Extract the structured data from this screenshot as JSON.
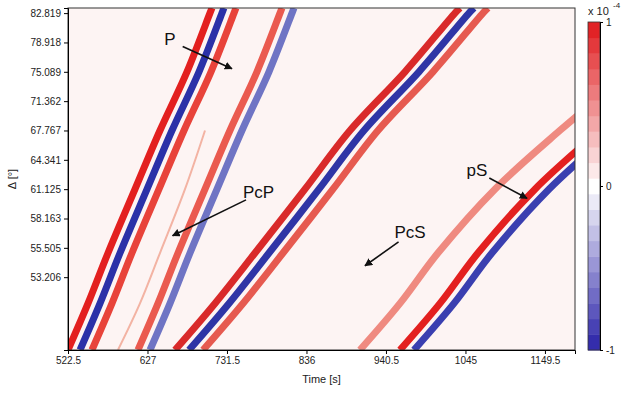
{
  "chart_data": {
    "type": "line",
    "xlabel": "Time [s]",
    "ylabel": "Δ [°]",
    "xlim": [
      522.5,
      1189
    ],
    "xticks": [
      522.5,
      627,
      731.5,
      836,
      940.5,
      1045,
      1149.5
    ],
    "ylim": [
      47.5,
      83.5
    ],
    "yticks": [
      53.206,
      55.505,
      58.163,
      61.125,
      64.341,
      67.767,
      71.362,
      75.089,
      78.918,
      82.819
    ],
    "series": [
      {
        "color": "#e3201f",
        "x": [
          522.5,
          548.8,
          575.1,
          610.6,
          643.4,
          678.9,
          709.1,
          711.8
        ],
        "values": [
          47.5,
          51.15,
          55.1,
          61.125,
          67.767,
          75.089,
          82.819,
          83.5
        ]
      },
      {
        "color": "#2b31a8",
        "x": [
          538.3,
          564.6,
          590.9,
          626.4,
          659.2,
          694.7,
          724.9,
          727.5
        ],
        "values": [
          47.5,
          51.15,
          55.1,
          61.125,
          67.767,
          75.089,
          82.819,
          83.5
        ]
      },
      {
        "color": "#e8433a",
        "x": [
          554.0,
          580.3,
          606.6,
          642.1,
          675.0,
          710.5,
          740.7,
          743.3
        ],
        "values": [
          47.5,
          51.15,
          55.1,
          61.125,
          67.767,
          75.089,
          82.819,
          83.5
        ]
      },
      {
        "color": "#f3b3a3",
        "line_style": "thin",
        "x": [
          588.2,
          617.1,
          643.4,
          676.3,
          702.6
        ],
        "values": [
          47.5,
          51.15,
          55.1,
          61.125,
          67.767
        ]
      },
      {
        "color": "#ea5a4f",
        "x": [
          614.5,
          640.8,
          667.1,
          702.6,
          735.4,
          770.9,
          801.2,
          803.8
        ],
        "values": [
          47.5,
          51.15,
          55.1,
          61.125,
          67.767,
          75.089,
          82.819,
          83.5
        ]
      },
      {
        "color": "#6f74c4",
        "x": [
          630.3,
          656.6,
          682.9,
          718.4,
          751.2,
          786.7,
          817.0,
          819.6
        ],
        "values": [
          47.5,
          51.15,
          55.1,
          61.125,
          67.767,
          75.089,
          82.819,
          83.5
        ]
      },
      {
        "color": "#d92a2a",
        "x": [
          663.2,
          715.7,
          768.3,
          834.0,
          893.2,
          965.5,
          1031.2,
          1037.8
        ],
        "values": [
          47.5,
          51.15,
          55.1,
          61.125,
          67.767,
          75.089,
          82.819,
          83.5
        ]
      },
      {
        "color": "#2f35a6",
        "x": [
          681.6,
          734.1,
          786.7,
          852.4,
          911.6,
          983.9,
          1049.6,
          1056.2
        ],
        "values": [
          47.5,
          51.15,
          55.1,
          61.125,
          67.767,
          75.089,
          82.819,
          83.5
        ]
      },
      {
        "color": "#e65a50",
        "x": [
          700.0,
          752.5,
          805.1,
          870.8,
          930.0,
          1002.3,
          1068.0,
          1074.6
        ],
        "values": [
          47.5,
          51.15,
          55.1,
          61.125,
          67.767,
          75.089,
          82.819,
          83.5
        ]
      },
      {
        "color": "#ef8a80",
        "x": [
          906.3,
          958.9,
          1008.8,
          1083.8,
          1169.2,
          1261.2
        ],
        "values": [
          47.5,
          51.15,
          55.1,
          61.125,
          67.767,
          75.089
        ]
      },
      {
        "color": "#e3201f",
        "x": [
          958.9,
          1011.5,
          1061.4,
          1136.4,
          1221.8,
          1313.8
        ],
        "values": [
          47.5,
          51.15,
          55.1,
          61.125,
          67.767,
          75.089
        ]
      },
      {
        "color": "#3a3fb0",
        "x": [
          977.3,
          1029.9,
          1079.8,
          1154.8,
          1240.2,
          1332.2
        ],
        "values": [
          47.5,
          51.15,
          55.1,
          61.125,
          67.767,
          75.089
        ]
      }
    ],
    "annotations": [
      {
        "text": "P",
        "x": 738,
        "y": 75.5
      },
      {
        "text": "PcP",
        "x": 660,
        "y": 56.6
      },
      {
        "text": "PcS",
        "x": 912.9,
        "y": 54.1
      },
      {
        "text": "pS",
        "x": 1125.9,
        "y": 60.2
      }
    ],
    "colorbar": {
      "range": [
        -1,
        1
      ],
      "ticks": [
        -1,
        0,
        1
      ],
      "label": "x 10",
      "exponent": "-4"
    }
  }
}
